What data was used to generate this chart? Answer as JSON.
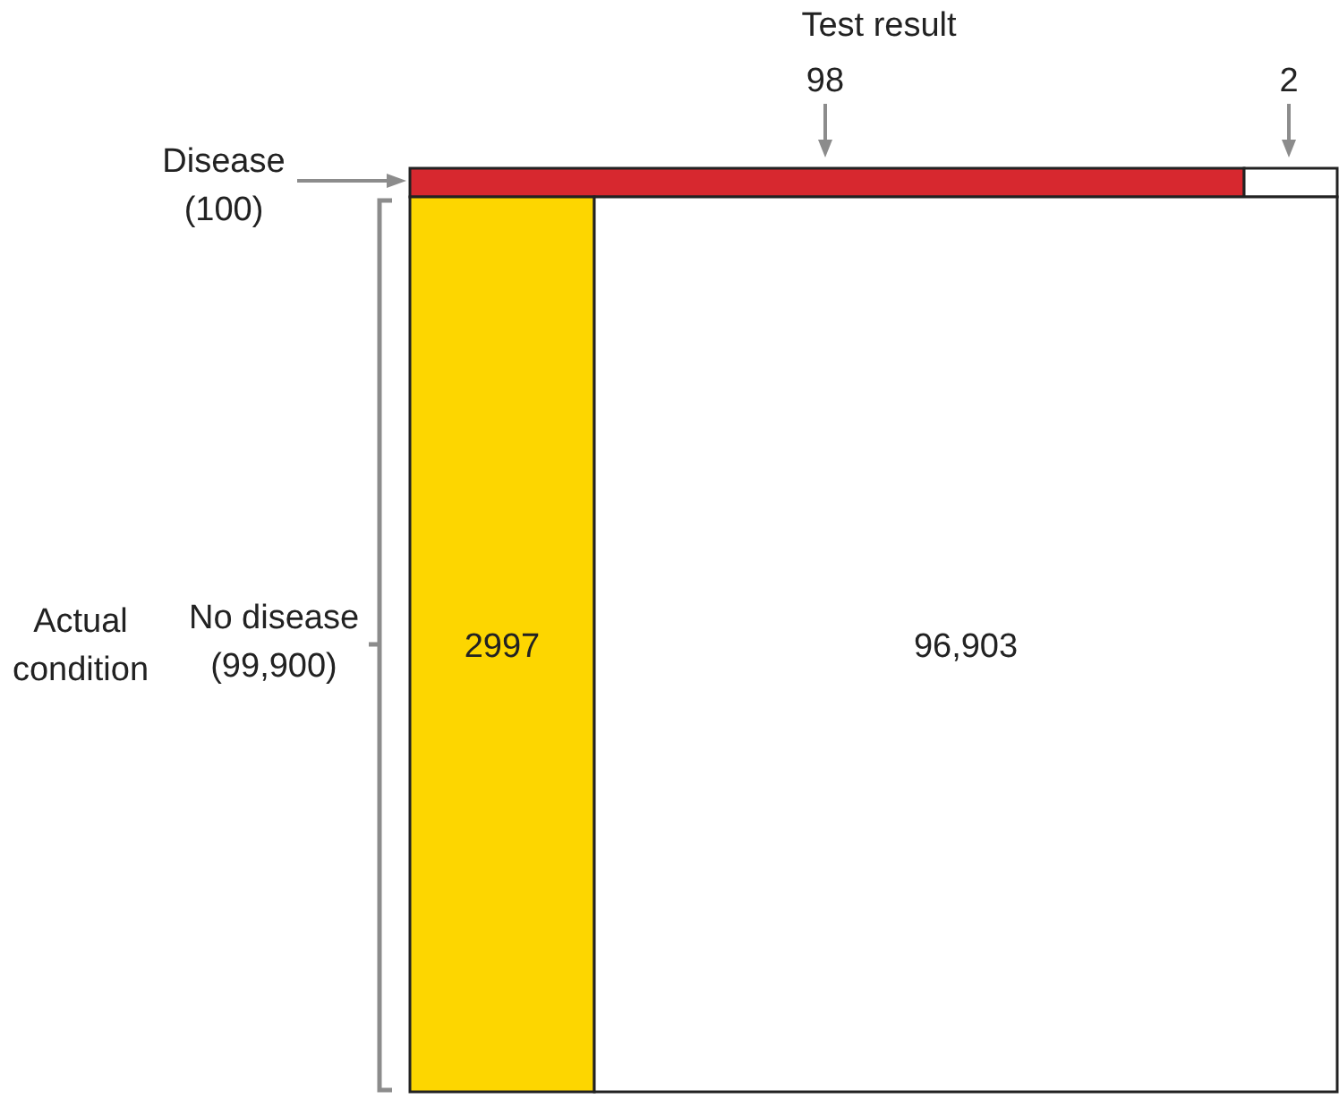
{
  "chart_data": {
    "type": "other",
    "title": "Test result",
    "ylabel": "Actual condition",
    "data_labels": true,
    "categories": [
      "Disease\n(100)",
      "No disease\n(99,900)"
    ],
    "series": [
      {
        "colors": [
          "#d7282f",
          "#fdd600"
        ],
        "values": [
          98,
          2997
        ]
      },
      {
        "colors": [
          "#ffffff",
          "#ffffff"
        ],
        "values": [
          2,
          96903
        ],
        "value_labels": [
          "2",
          "96,903"
        ]
      }
    ]
  }
}
